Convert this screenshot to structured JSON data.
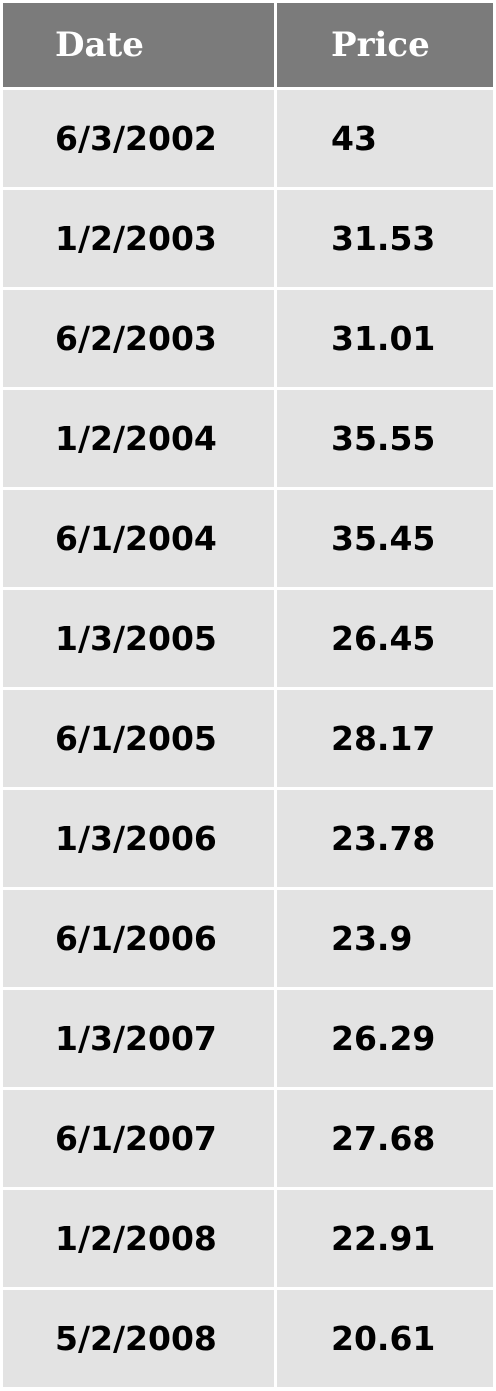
{
  "chart_data": {
    "type": "table",
    "columns": [
      "Date",
      "Price"
    ],
    "rows": [
      [
        "6/3/2002",
        "43"
      ],
      [
        "1/2/2003",
        "31.53"
      ],
      [
        "6/2/2003",
        "31.01"
      ],
      [
        "1/2/2004",
        "35.55"
      ],
      [
        "6/1/2004",
        "35.45"
      ],
      [
        "1/3/2005",
        "26.45"
      ],
      [
        "6/1/2005",
        "28.17"
      ],
      [
        "1/3/2006",
        "23.78"
      ],
      [
        "6/1/2006",
        "23.9"
      ],
      [
        "1/3/2007",
        "26.29"
      ],
      [
        "6/1/2007",
        "27.68"
      ],
      [
        "1/2/2008",
        "22.91"
      ],
      [
        "5/2/2008",
        "20.61"
      ]
    ]
  },
  "colors": {
    "header_background": "#7b7b7b",
    "header_text": "#ffffff",
    "cell_background": "#e3e3e3",
    "cell_text": "#000000"
  }
}
